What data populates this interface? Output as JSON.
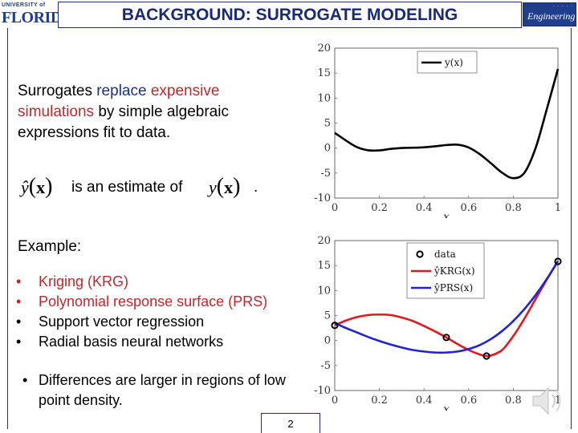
{
  "header": {
    "title": "BACKGROUND: SURROGATE MODELING",
    "logo_left_top": "UNIVERSITY of",
    "logo_left_main": "FLORIDA",
    "logo_right_text": "Engineering"
  },
  "intro": {
    "p1": "Surrogates ",
    "p2": "replace",
    "p3": " ",
    "p4": "expensive",
    "p5": "simulations",
    "p6": " by simple algebraic expressions fit to data."
  },
  "estimate": {
    "yhat": "ŷ",
    "x": "x",
    "middle": "is an estimate of",
    "y": "y",
    "period": "."
  },
  "example_label": "Example:",
  "bullets": [
    "Kriging (KRG)",
    "Polynomial response surface (PRS)",
    "Support vector regression",
    "Radial basis neural networks"
  ],
  "diff_bullet": "Differences are larger in regions of low point density.",
  "slide_number": "2",
  "colors": {
    "title": "#1a2a78",
    "accent_blue": "#1b2f8a",
    "accent_red": "#c0282d",
    "krg": "#e5161d",
    "prs": "#1e22d8"
  },
  "chart_data": [
    {
      "type": "line",
      "xlabel": "x",
      "xlim": [
        0,
        1
      ],
      "ylim": [
        -10,
        20
      ],
      "xticks": [
        "0",
        "0.2",
        "0.4",
        "0.6",
        "0.8",
        "1"
      ],
      "yticks": [
        "20",
        "15",
        "10",
        "5",
        "0",
        "-5",
        "-10"
      ],
      "legend_position": "top-right",
      "series": [
        {
          "name": "y(x)",
          "color": "#000000",
          "x": [
            0,
            0.05,
            0.1,
            0.15,
            0.2,
            0.25,
            0.3,
            0.35,
            0.4,
            0.45,
            0.5,
            0.55,
            0.6,
            0.65,
            0.7,
            0.75,
            0.8,
            0.85,
            0.9,
            0.95,
            1
          ],
          "y": [
            3.03,
            1.52,
            0.18,
            -0.44,
            -0.47,
            -0.17,
            0.02,
            0.07,
            0.15,
            0.36,
            0.61,
            0.68,
            0.12,
            -1.23,
            -3.05,
            -4.94,
            -6.02,
            -4.93,
            0.01,
            7.76,
            15.83
          ]
        }
      ]
    },
    {
      "type": "line",
      "xlabel": "x",
      "xlim": [
        0,
        1
      ],
      "ylim": [
        -10,
        20
      ],
      "xticks": [
        "0",
        "0.2",
        "0.4",
        "0.6",
        "0.8",
        "1"
      ],
      "yticks": [
        "20",
        "15",
        "10",
        "5",
        "0",
        "-5",
        "-10"
      ],
      "legend_position": "top-right",
      "points": {
        "name": "data",
        "x": [
          0,
          0.5,
          0.68,
          1
        ],
        "y": [
          3.03,
          0.61,
          -3.1,
          15.83
        ]
      },
      "series": [
        {
          "name": "ŷKRG(x)",
          "color": "#e5161d",
          "x": [
            0,
            0.05,
            0.1,
            0.15,
            0.2,
            0.25,
            0.3,
            0.35,
            0.4,
            0.45,
            0.5,
            0.55,
            0.6,
            0.65,
            0.68,
            0.7,
            0.75,
            0.8,
            0.85,
            0.9,
            0.95,
            1
          ],
          "y": [
            3.03,
            4.0,
            4.7,
            5.1,
            5.2,
            5.1,
            4.6,
            3.9,
            2.9,
            1.8,
            0.61,
            -0.7,
            -1.9,
            -2.8,
            -3.1,
            -3.0,
            -1.9,
            0.9,
            4.4,
            8.3,
            12.2,
            15.83
          ]
        },
        {
          "name": "ŷPRS(x)",
          "color": "#1e22d8",
          "x": [
            0,
            0.05,
            0.1,
            0.15,
            0.2,
            0.25,
            0.3,
            0.35,
            0.4,
            0.45,
            0.5,
            0.55,
            0.6,
            0.65,
            0.7,
            0.75,
            0.8,
            0.85,
            0.9,
            0.95,
            1
          ],
          "y": [
            3.5,
            2.5,
            1.6,
            0.7,
            -0.1,
            -0.8,
            -1.4,
            -1.9,
            -2.2,
            -2.4,
            -2.4,
            -2.2,
            -1.7,
            -0.9,
            0.3,
            1.9,
            3.9,
            6.3,
            9.1,
            12.3,
            15.9
          ]
        }
      ]
    }
  ]
}
